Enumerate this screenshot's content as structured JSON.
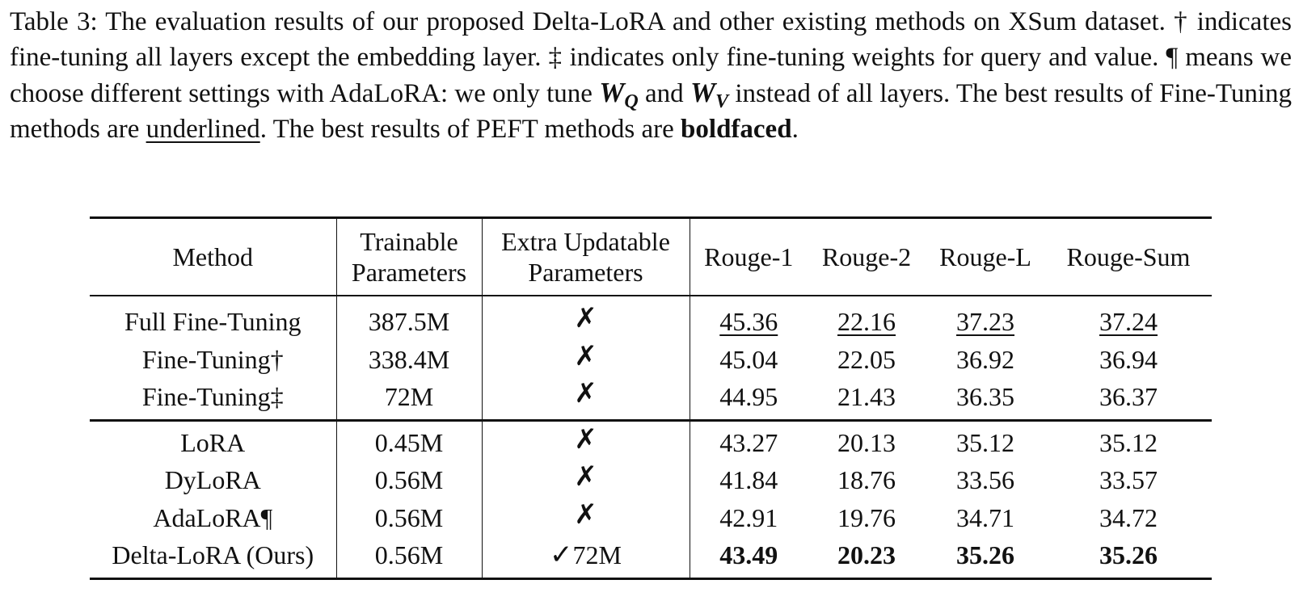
{
  "caption": {
    "part1": "Table 3: The evaluation results of our proposed Delta-LoRA and other existing methods on XSum dataset. ",
    "dagger": "†",
    "part2": " indicates fine-tuning all layers except the embedding layer. ",
    "ddagger": "‡",
    "part3": " indicates only fine-tuning weights for query and value. ",
    "pilcrow": "¶",
    "part4": " means we choose different settings with AdaLoRA: we only tune ",
    "wq_base": "W",
    "wq_sub": "Q",
    "part5": " and ",
    "wv_base": "W",
    "wv_sub": "V",
    "part6": " instead of all layers. The best results of Fine-Tuning methods are ",
    "underlined_word": "underlined",
    "part7": ". The best results of PEFT methods are ",
    "bold_word": "boldfaced",
    "part8": "."
  },
  "table": {
    "headers": {
      "method": "Method",
      "trainable_line1": "Trainable",
      "trainable_line2": "Parameters",
      "extra_line1": "Extra Updatable",
      "extra_line2": "Parameters",
      "rouge1": "Rouge-1",
      "rouge2": "Rouge-2",
      "rougel": "Rouge-L",
      "rougesum": "Rouge-Sum"
    },
    "finetuning_rows": [
      {
        "method": "Full Fine-Tuning",
        "trainable": "387.5M",
        "extra": "✗",
        "r1": "45.36",
        "r2": "22.16",
        "rl": "37.23",
        "rs": "37.24"
      },
      {
        "method": "Fine-Tuning†",
        "trainable": "338.4M",
        "extra": "✗",
        "r1": "45.04",
        "r2": "22.05",
        "rl": "36.92",
        "rs": "36.94"
      },
      {
        "method": "Fine-Tuning‡",
        "trainable": "72M",
        "extra": "✗",
        "r1": "44.95",
        "r2": "21.43",
        "rl": "36.35",
        "rs": "36.37"
      }
    ],
    "peft_rows": [
      {
        "method": "LoRA",
        "trainable": "0.45M",
        "extra": "✗",
        "r1": "43.27",
        "r2": "20.13",
        "rl": "35.12",
        "rs": "35.12"
      },
      {
        "method": "DyLoRA",
        "trainable": "0.56M",
        "extra": "✗",
        "r1": "41.84",
        "r2": "18.76",
        "rl": "33.56",
        "rs": "33.57"
      },
      {
        "method": "AdaLoRA¶",
        "trainable": "0.56M",
        "extra": "✗",
        "r1": "42.91",
        "r2": "19.76",
        "rl": "34.71",
        "rs": "34.72"
      },
      {
        "method": "Delta-LoRA (Ours)",
        "trainable": "0.56M",
        "extra_check": "✓",
        "extra": "72M",
        "r1": "43.49",
        "r2": "20.23",
        "rl": "35.26",
        "rs": "35.26"
      }
    ]
  }
}
